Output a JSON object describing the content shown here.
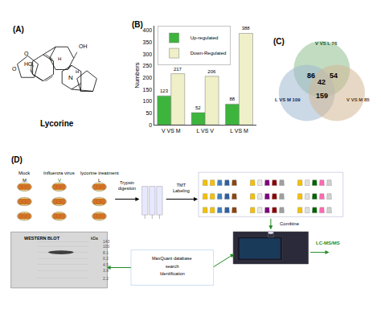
{
  "chart_data": [
    {
      "type": "diagram",
      "title": "(A)",
      "annotations": [
        "OH",
        "HO,",
        "N",
        "H",
        "H",
        "O",
        "O",
        "Lycorine"
      ]
    },
    {
      "type": "bar",
      "title": "(B)",
      "categories": [
        "V VS M",
        "L VS V",
        "L VS M"
      ],
      "series": [
        {
          "name": "Up-regulated",
          "color": "#3db53d",
          "values": [
            123,
            52,
            88
          ]
        },
        {
          "name": "Down-Regulated",
          "color": "#f0f0c8",
          "values": [
            217,
            206,
            388
          ]
        }
      ],
      "ylabel": "Numbers",
      "ylim": [
        0,
        420
      ],
      "yticks": [
        0,
        50,
        100,
        150,
        200,
        250,
        300,
        350,
        400
      ],
      "data_labels": true,
      "legend": "upper left",
      "grid": false
    },
    {
      "type": "venn",
      "title": "(C)",
      "series": [
        {
          "name": "V VS L 76",
          "color": "#90c090"
        },
        {
          "name": "L VS M 109",
          "color": "#a0b8d0"
        },
        {
          "name": "V VS M 85",
          "color": "#d4b896"
        }
      ],
      "values": [
        86,
        54,
        159,
        42
      ]
    },
    {
      "type": "diagram",
      "title": "(D)",
      "annotations": [
        "Mock",
        "Influenza virus",
        "lycorine treatment",
        "M",
        "V",
        "L",
        "Trypsin\ndigestion",
        "TMT\nLabeling",
        "Combine",
        "LC-MS/MS",
        "WESTERN BLOT",
        "kDa",
        "143",
        "100",
        "8.1",
        "0.2",
        "4.5",
        "3.8",
        "2.2",
        "MaxQuant database\nsearch\nIdentification"
      ]
    }
  ]
}
